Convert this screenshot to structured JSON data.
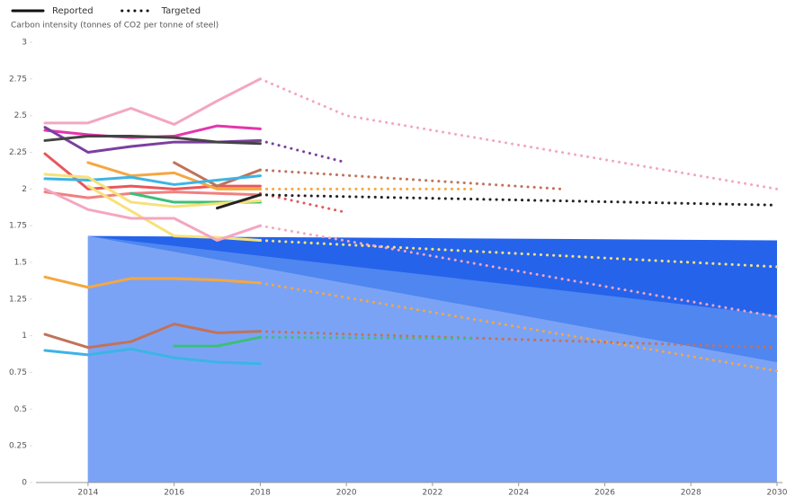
{
  "chart_data": {
    "type": "line",
    "y_label": "Carbon intensity (tonnes of CO2 per tonne of steel)",
    "legend": [
      {
        "name": "Reported",
        "style": "solid"
      },
      {
        "name": "Targeted",
        "style": "dotted"
      }
    ],
    "xlim": [
      2013,
      2030
    ],
    "xticks": [
      2014,
      2016,
      2018,
      2020,
      2022,
      2024,
      2026,
      2028,
      2030
    ],
    "ylim": [
      0,
      3
    ],
    "yticks": [
      0,
      0.25,
      0.5,
      0.75,
      1,
      1.25,
      1.5,
      1.75,
      2,
      2.25,
      2.5,
      2.75,
      3
    ],
    "areas": [
      {
        "color": "#2563eb",
        "x": [
          2014,
          2030
        ],
        "values": [
          1.68,
          1.65
        ]
      },
      {
        "color": "#4f86f0",
        "x": [
          2014,
          2030
        ],
        "values": [
          1.68,
          1.14
        ]
      },
      {
        "color": "#7ba3f5",
        "x": [
          2014,
          2030
        ],
        "values": [
          1.68,
          0.82
        ]
      }
    ],
    "series": [
      {
        "color": "#f4a6c0",
        "style": "solid",
        "x": [
          2013,
          2014,
          2015,
          2016,
          2017,
          2018
        ],
        "values": [
          2.45,
          2.45,
          2.55,
          2.44,
          2.6,
          2.75
        ]
      },
      {
        "color": "#f4a6c0",
        "style": "dotted",
        "x": [
          2018,
          2020,
          2030
        ],
        "values": [
          2.75,
          2.5,
          2.0
        ]
      },
      {
        "color": "#e535ab",
        "style": "solid",
        "x": [
          2013,
          2014,
          2015,
          2016,
          2017,
          2018
        ],
        "values": [
          2.4,
          2.37,
          2.35,
          2.36,
          2.43,
          2.41
        ]
      },
      {
        "color": "#7b3fa0",
        "style": "solid",
        "x": [
          2013,
          2014,
          2015,
          2016,
          2017,
          2018
        ],
        "values": [
          2.42,
          2.25,
          2.29,
          2.32,
          2.32,
          2.33
        ]
      },
      {
        "color": "#7b3fa0",
        "style": "dotted",
        "x": [
          2018,
          2020
        ],
        "values": [
          2.33,
          2.18
        ]
      },
      {
        "color": "#444444",
        "style": "solid",
        "x": [
          2013,
          2014,
          2015,
          2016,
          2017,
          2018
        ],
        "values": [
          2.33,
          2.36,
          2.36,
          2.35,
          2.32,
          2.31
        ]
      },
      {
        "color": "#e8575a",
        "style": "solid",
        "x": [
          2013,
          2014,
          2015,
          2016,
          2017,
          2018
        ],
        "values": [
          2.24,
          2.0,
          2.02,
          2.0,
          2.02,
          2.02
        ]
      },
      {
        "color": "#e8575a",
        "style": "dotted",
        "x": [
          2018,
          2020
        ],
        "values": [
          1.97,
          1.84
        ]
      },
      {
        "color": "#f5a742",
        "style": "solid",
        "x": [
          2014,
          2015,
          2016,
          2017,
          2018
        ],
        "values": [
          2.18,
          2.09,
          2.11,
          2.0,
          2.0
        ]
      },
      {
        "color": "#f5a742",
        "style": "dotted",
        "x": [
          2018,
          2023
        ],
        "values": [
          2.0,
          2.0
        ]
      },
      {
        "color": "#c0735a",
        "style": "solid",
        "x": [
          2016,
          2017,
          2018
        ],
        "values": [
          2.18,
          2.02,
          2.13
        ]
      },
      {
        "color": "#c0735a",
        "style": "dotted",
        "x": [
          2018,
          2025
        ],
        "values": [
          2.13,
          2.0
        ]
      },
      {
        "color": "#3cb4e6",
        "style": "solid",
        "x": [
          2013,
          2014,
          2015,
          2016,
          2017,
          2018
        ],
        "values": [
          2.07,
          2.06,
          2.08,
          2.03,
          2.06,
          2.09
        ]
      },
      {
        "color": "#f08080",
        "style": "solid",
        "x": [
          2013,
          2014,
          2015,
          2016,
          2017,
          2018
        ],
        "values": [
          1.98,
          1.94,
          1.97,
          1.98,
          1.97,
          1.96
        ]
      },
      {
        "color": "#3cbf7a",
        "style": "solid",
        "x": [
          2015,
          2016,
          2017,
          2018
        ],
        "values": [
          1.97,
          1.91,
          1.91,
          1.91
        ]
      },
      {
        "color": "#f7e17a",
        "style": "solid",
        "x": [
          2013,
          2014,
          2015,
          2016,
          2017,
          2018
        ],
        "values": [
          2.1,
          2.08,
          1.91,
          1.88,
          1.9,
          1.92
        ]
      },
      {
        "color": "#f7e17a",
        "style": "solid",
        "x": [
          2014,
          2015,
          2016,
          2017,
          2018
        ],
        "values": [
          2.02,
          1.85,
          1.68,
          1.67,
          1.65
        ]
      },
      {
        "color": "#f7e17a",
        "style": "dotted",
        "x": [
          2018,
          2030
        ],
        "values": [
          1.65,
          1.47
        ]
      },
      {
        "color": "#f4a6c0",
        "style": "solid",
        "x": [
          2013,
          2014,
          2015,
          2016,
          2017,
          2018
        ],
        "values": [
          2.0,
          1.86,
          1.8,
          1.8,
          1.65,
          1.75
        ]
      },
      {
        "color": "#f4a6c0",
        "style": "dotted",
        "x": [
          2018,
          2030
        ],
        "values": [
          1.75,
          1.13
        ]
      },
      {
        "color": "#222222",
        "style": "solid",
        "x": [
          2017,
          2018
        ],
        "values": [
          1.87,
          1.96
        ]
      },
      {
        "color": "#222222",
        "style": "dotted",
        "x": [
          2018,
          2030
        ],
        "values": [
          1.96,
          1.89
        ]
      },
      {
        "color": "#f5a742",
        "style": "solid",
        "x": [
          2013,
          2014,
          2015,
          2016,
          2017,
          2018
        ],
        "values": [
          1.4,
          1.33,
          1.39,
          1.39,
          1.38,
          1.36
        ]
      },
      {
        "color": "#f5a742",
        "style": "dotted",
        "x": [
          2018,
          2030
        ],
        "values": [
          1.36,
          0.76
        ]
      },
      {
        "color": "#c0735a",
        "style": "solid",
        "x": [
          2013,
          2014,
          2015,
          2016,
          2017,
          2018
        ],
        "values": [
          1.01,
          0.92,
          0.96,
          1.08,
          1.02,
          1.03
        ]
      },
      {
        "color": "#c0735a",
        "style": "dotted",
        "x": [
          2018,
          2030
        ],
        "values": [
          1.03,
          0.92
        ]
      },
      {
        "color": "#3cbf7a",
        "style": "solid",
        "x": [
          2016,
          2017,
          2018
        ],
        "values": [
          0.93,
          0.93,
          0.99
        ]
      },
      {
        "color": "#3cbf7a",
        "style": "dotted",
        "x": [
          2018,
          2023
        ],
        "values": [
          0.99,
          0.98
        ]
      },
      {
        "color": "#3cb4e6",
        "style": "solid",
        "x": [
          2013,
          2014,
          2015,
          2016,
          2017,
          2018
        ],
        "values": [
          0.9,
          0.87,
          0.91,
          0.85,
          0.82,
          0.81
        ]
      }
    ]
  }
}
